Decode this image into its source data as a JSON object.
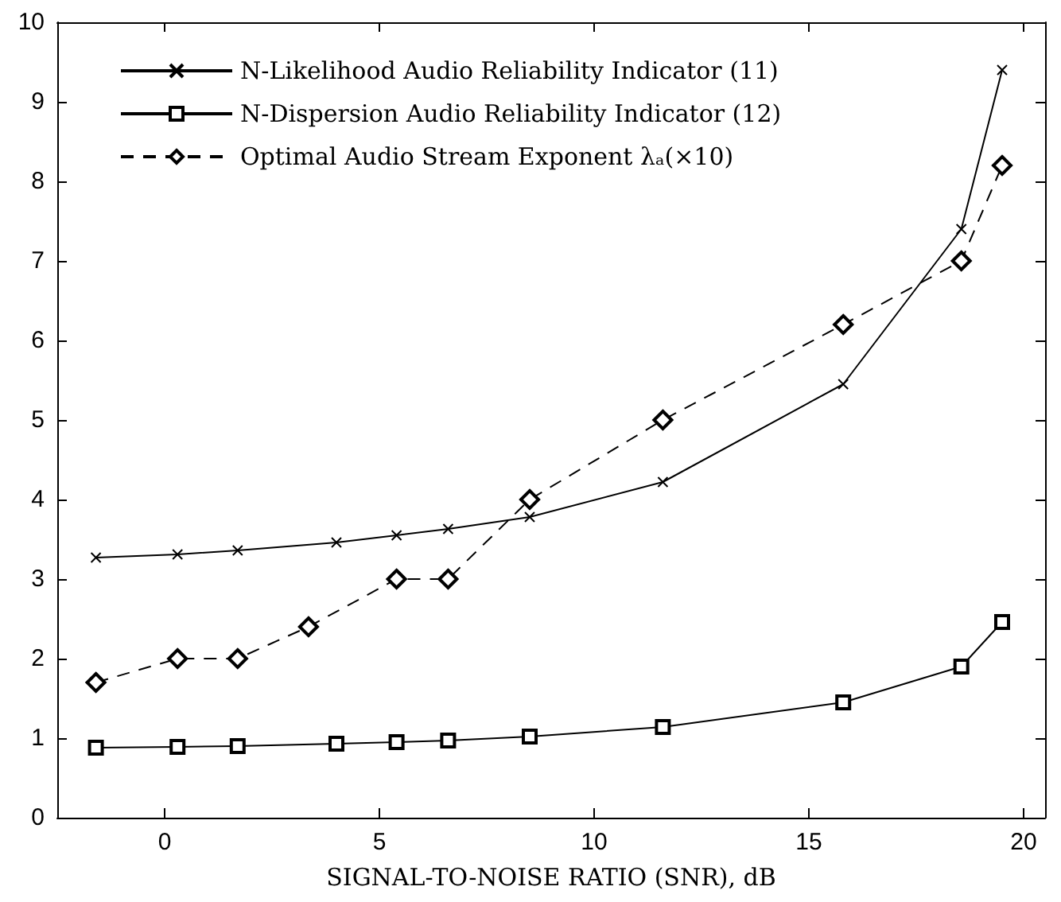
{
  "chart_data": {
    "type": "line",
    "xlabel": "SIGNAL-TO-NOISE RATIO (SNR), dB",
    "xlim": [
      -2.5,
      20.5
    ],
    "xticks": [
      0,
      5,
      10,
      15,
      20
    ],
    "ylim": [
      0,
      10
    ],
    "yticks": [
      0,
      1,
      2,
      3,
      4,
      5,
      6,
      7,
      8,
      9,
      10
    ],
    "legend": "top left",
    "series": [
      {
        "name": "N-Likelihood Audio Reliability Indicator (11)",
        "color": "#000000",
        "marker": "cross",
        "line_style": "solid",
        "x": [
          -1.6,
          0.3,
          1.7,
          4.0,
          5.4,
          6.6,
          8.5,
          11.6,
          15.8,
          18.55,
          19.5
        ],
        "values": [
          3.27,
          3.31,
          3.36,
          3.46,
          3.55,
          3.63,
          3.78,
          4.22,
          5.45,
          7.4,
          9.4
        ]
      },
      {
        "name": "N-Dispersion Audio Reliability Indicator (12)",
        "color": "#000000",
        "marker": "square",
        "line_style": "solid",
        "x": [
          -1.6,
          0.3,
          1.7,
          4.0,
          5.4,
          6.6,
          8.5,
          11.6,
          15.8,
          18.55,
          19.5
        ],
        "values": [
          0.88,
          0.89,
          0.9,
          0.93,
          0.95,
          0.97,
          1.02,
          1.14,
          1.45,
          1.9,
          2.46
        ]
      },
      {
        "name": "Optimal Audio Stream Exponent λₐ(×10)",
        "color": "#000000",
        "marker": "diamond",
        "line_style": "dashed",
        "x": [
          -1.6,
          0.3,
          1.7,
          3.35,
          5.4,
          6.6,
          8.5,
          11.6,
          15.8,
          18.55,
          19.5
        ],
        "values": [
          1.7,
          2.0,
          2.0,
          2.4,
          3.0,
          3.0,
          4.0,
          5.0,
          6.2,
          7.0,
          8.2
        ]
      }
    ]
  }
}
